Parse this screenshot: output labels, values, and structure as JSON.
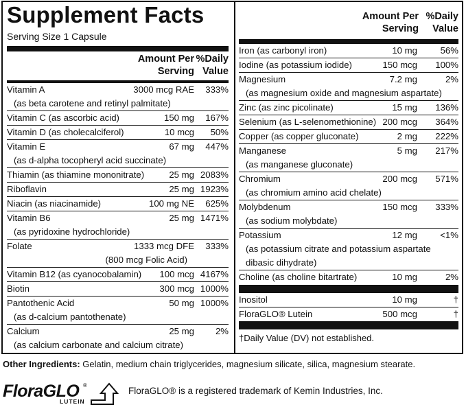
{
  "title": "Supplement Facts",
  "serving_size": "Serving Size 1 Capsule",
  "header": {
    "amount": [
      "Amount Per",
      "Serving"
    ],
    "daily": [
      "%Daily",
      "Value"
    ]
  },
  "left_rows": [
    {
      "name": "Vitamin A",
      "amount": "3000 mcg RAE",
      "percent": "333%",
      "sub": "(as beta carotene and retinyl palmitate)",
      "thick": true
    },
    {
      "name": "Vitamin C (as ascorbic acid)",
      "amount": "150 mg",
      "percent": "167%"
    },
    {
      "name": "Vitamin D (as cholecalciferol)",
      "amount": "10 mcg",
      "percent": "50%"
    },
    {
      "name": "Vitamin E",
      "amount": "67 mg",
      "percent": "447%",
      "sub": "(as d-alpha tocopheryl acid succinate)"
    },
    {
      "name": "Thiamin (as thiamine mononitrate)",
      "amount": "25 mg",
      "percent": "2083%"
    },
    {
      "name": "Riboflavin",
      "amount": "25 mg",
      "percent": "1923%"
    },
    {
      "name": "Niacin (as niacinamide)",
      "amount": "100 mg NE",
      "percent": "625%"
    },
    {
      "name": "Vitamin B6",
      "amount": "25 mg",
      "percent": "1471%",
      "sub": "(as pyridoxine hydrochloride)"
    },
    {
      "name": "Folate",
      "amount": "1333 mcg DFE",
      "percent": "333%",
      "sub": "(800 mcg Folic Acid)",
      "sub_right": true
    },
    {
      "name": "Vitamin B12 (as cyanocobalamin)",
      "amount": "100 mcg",
      "percent": "4167%"
    },
    {
      "name": "Biotin",
      "amount": "300 mcg",
      "percent": "1000%"
    },
    {
      "name": "Pantothenic Acid",
      "amount": "50 mg",
      "percent": "1000%",
      "sub": "(as d-calcium pantothenate)"
    },
    {
      "name": "Calcium",
      "amount": "25 mg",
      "percent": "2%",
      "sub": "(as calcium carbonate and calcium citrate)"
    }
  ],
  "right_rows": [
    {
      "name": "Iron (as carbonyl iron)",
      "amount": "10 mg",
      "percent": "56%"
    },
    {
      "name": "Iodine (as potassium iodide)",
      "amount": "150 mcg",
      "percent": "100%"
    },
    {
      "name": "Magnesium",
      "amount": "7.2 mg",
      "percent": "2%",
      "sub": "(as magnesium oxide and magnesium aspartate)"
    },
    {
      "name": "Zinc (as zinc picolinate)",
      "amount": "15 mg",
      "percent": "136%"
    },
    {
      "name": "Selenium (as L-selenomethionine)",
      "amount": "200 mcg",
      "percent": "364%"
    },
    {
      "name": "Copper (as copper gluconate)",
      "amount": "2 mg",
      "percent": "222%"
    },
    {
      "name": "Manganese",
      "amount": "5 mg",
      "percent": "217%",
      "sub": "(as manganese gluconate)"
    },
    {
      "name": "Chromium",
      "amount": "200 mcg",
      "percent": "571%",
      "sub": "(as chromium amino acid chelate)"
    },
    {
      "name": "Molybdenum",
      "amount": "150 mcg",
      "percent": "333%",
      "sub": "(as sodium molybdate)"
    },
    {
      "name": "Potassium",
      "amount": "12 mg",
      "percent": "<1%",
      "sub": "(as potassium citrate and potassium aspartate",
      "sub2": "dibasic dihydrate)"
    },
    {
      "name": "Choline (as choline bitartrate)",
      "amount": "10 mg",
      "percent": "2%"
    }
  ],
  "right_rows_2": [
    {
      "name": "Inositol",
      "amount": "10 mg",
      "percent": "†"
    },
    {
      "name": "FloraGLO® Lutein",
      "amount": "500 mcg",
      "percent": "†"
    }
  ],
  "dv_note": "†Daily Value (DV) not established.",
  "other_label": "Other Ingredients:",
  "other_text": " Gelatin, medium chain triglycerides, magnesium silicate, silica, magnesium stearate.",
  "logo": {
    "brand_main": "FloraGLO",
    "brand_sub": "LUTEIN",
    "registered": "®"
  },
  "trademark_text": "FloraGLO® is a registered trademark of Kemin Industries, Inc."
}
